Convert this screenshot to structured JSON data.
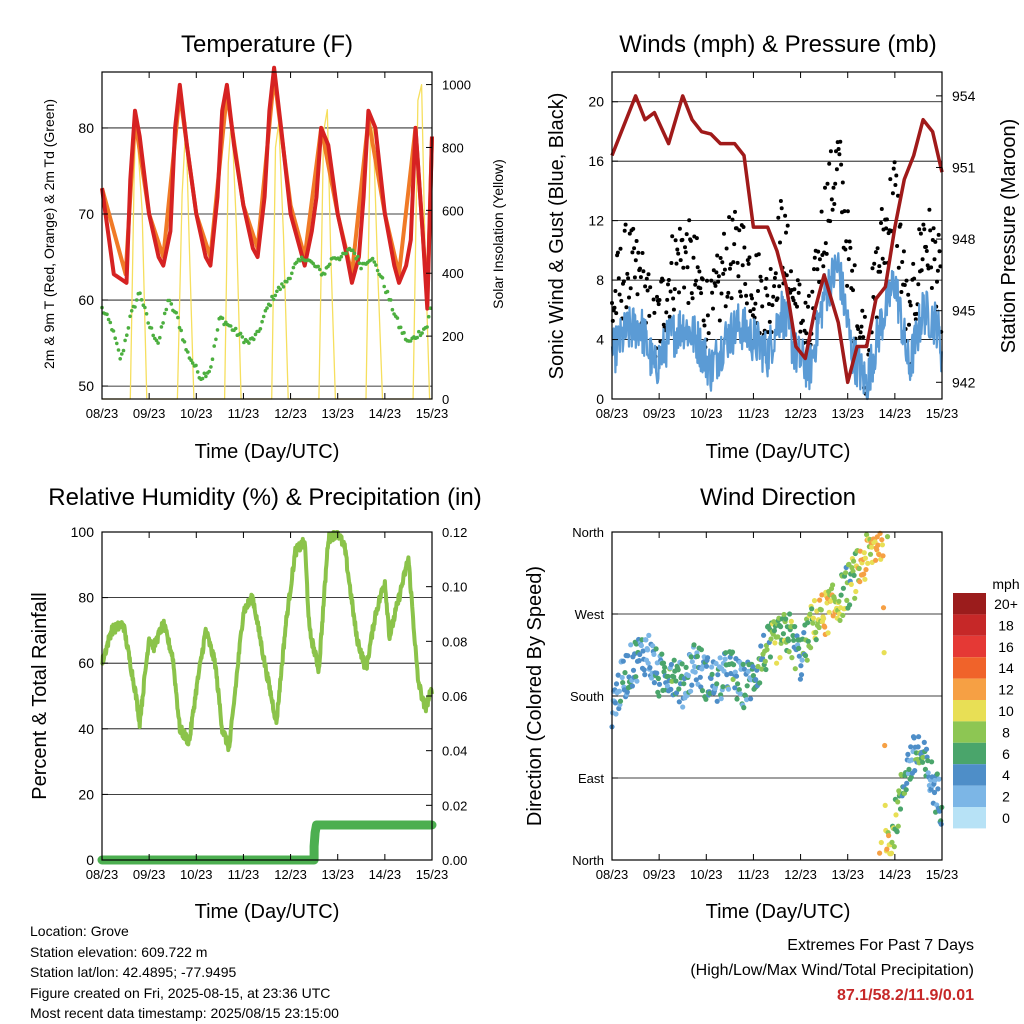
{
  "panels": {
    "temperature": {
      "title": "Temperature (F)",
      "ylabel_left": "2m & 9m T (Red, Orange) & 2m Td (Green)",
      "ylabel_right": "Solar Insolation (Yellow)",
      "xlabel": "Time (Day/UTC)"
    },
    "winds": {
      "title": "Winds (mph) & Pressure (mb)",
      "ylabel_left": "Sonic Wind & Gust (Blue, Black)",
      "ylabel_right": "Station Pressure (Maroon)",
      "xlabel": "Time (Day/UTC)"
    },
    "humidity": {
      "title": "Relative Humidity (%) & Precipitation (in)",
      "ylabel_left": "Percent & Total Rainfall",
      "xlabel": "Time (Day/UTC)"
    },
    "direction": {
      "title": "Wind Direction",
      "ylabel_left": "Direction (Colored By Speed)",
      "xlabel": "Time (Day/UTC)",
      "legend_title": "mph"
    }
  },
  "info": {
    "location": "Location: Grove",
    "elevation": "Station elevation: 609.722 m",
    "latlon": "Station lat/lon: 42.4895; -77.9495",
    "created": "Figure created on Fri, 2025-08-15, at 23:36 UTC",
    "recent": "Most recent data timestamp: 2025/08/15 23:15:00"
  },
  "extremes": {
    "heading": "Extremes For Past 7 Days",
    "subheading": "(High/Low/Max Wind/Total Precipitation)",
    "values": "87.1/58.2/11.9/0.01"
  },
  "chart_data": [
    {
      "type": "line",
      "title": "Temperature (F)",
      "xlabel": "Time (Day/UTC)",
      "ylabel": "2m & 9m T (Red, Orange) & 2m Td (Green)",
      "y2label": "Solar Insolation (Yellow)",
      "x_ticks": [
        "08/23",
        "09/23",
        "10/23",
        "11/23",
        "12/23",
        "13/23",
        "14/23",
        "15/23"
      ],
      "xlim": [
        0,
        7
      ],
      "ylim": [
        48.5,
        86.5
      ],
      "y_ticks": [
        50,
        60,
        70,
        80
      ],
      "y2lim": [
        0,
        1040
      ],
      "y2_ticks": [
        0,
        200,
        400,
        600,
        800,
        1000
      ],
      "grid": true,
      "colors": {
        "t2m": "#d62222",
        "t9m": "#f07a26",
        "td": "#4caf3f",
        "solar": "#f6df5e"
      },
      "series": [
        {
          "name": "2m T",
          "axis": "left",
          "x": [
            0,
            0.25,
            0.52,
            0.6,
            0.7,
            0.8,
            1.0,
            1.2,
            1.3,
            1.45,
            1.55,
            1.65,
            1.8,
            2.0,
            2.2,
            2.3,
            2.45,
            2.55,
            2.65,
            2.8,
            3.0,
            3.2,
            3.3,
            3.45,
            3.55,
            3.65,
            3.8,
            4.0,
            4.2,
            4.3,
            4.45,
            4.55,
            4.65,
            4.8,
            5.0,
            5.2,
            5.3,
            5.45,
            5.55,
            5.65,
            5.8,
            6.0,
            6.2,
            6.3,
            6.45,
            6.55,
            6.65,
            6.8,
            6.9,
            7.0
          ],
          "y": [
            73,
            63,
            62,
            74,
            82,
            79,
            70,
            65,
            64,
            68,
            80,
            85,
            78,
            70,
            65,
            64,
            72,
            82,
            85,
            78,
            71,
            66,
            65,
            72,
            82,
            87,
            80,
            70,
            66,
            64,
            68,
            72,
            80,
            78,
            70,
            65,
            62,
            65,
            72,
            82,
            80,
            70,
            64,
            62,
            64,
            67,
            80,
            68,
            59,
            79
          ]
        },
        {
          "name": "9m T",
          "axis": "left",
          "x": [
            0,
            0.5,
            0.7,
            1.0,
            1.3,
            1.65,
            2.0,
            2.3,
            2.65,
            3.0,
            3.3,
            3.65,
            4.0,
            4.3,
            4.65,
            5.0,
            5.3,
            5.65,
            6.0,
            6.3,
            6.65,
            6.9,
            7.0
          ],
          "y": [
            73,
            63,
            81,
            70,
            65,
            84,
            70,
            65,
            84,
            71,
            66,
            86,
            71,
            65,
            80,
            70,
            63,
            81,
            70,
            63,
            80,
            60,
            79
          ]
        },
        {
          "name": "2m Td",
          "axis": "left",
          "x": [
            0,
            0.2,
            0.4,
            0.6,
            0.8,
            1.0,
            1.2,
            1.4,
            1.6,
            1.8,
            2.0,
            2.1,
            2.3,
            2.5,
            2.7,
            2.9,
            3.1,
            3.3,
            3.5,
            3.7,
            3.9,
            4.1,
            4.3,
            4.5,
            4.7,
            4.9,
            5.1,
            5.3,
            5.5,
            5.7,
            5.9,
            6.1,
            6.3,
            6.5,
            6.7,
            6.9,
            7.0
          ],
          "y": [
            59,
            57,
            53,
            58,
            61,
            57,
            55,
            60,
            58,
            54,
            52,
            51,
            52,
            58,
            57,
            56,
            55,
            56,
            59,
            61,
            62,
            64,
            65,
            64,
            63,
            65,
            65,
            66,
            64,
            65,
            63,
            60,
            57,
            55,
            56,
            57,
            60
          ]
        },
        {
          "name": "Solar Insolation",
          "axis": "right",
          "x": [
            0,
            0.6,
            0.68,
            0.72,
            0.85,
            0.95,
            1.6,
            1.7,
            1.78,
            1.85,
            1.95,
            2.6,
            2.68,
            2.75,
            2.85,
            2.95,
            3.6,
            3.68,
            3.75,
            3.85,
            3.95,
            4.6,
            4.7,
            4.78,
            4.85,
            4.95,
            5.6,
            5.7,
            5.75,
            5.85,
            5.95,
            6.6,
            6.7,
            6.78,
            6.85,
            6.95,
            7.0
          ],
          "y": [
            0,
            0,
            700,
            900,
            600,
            0,
            0,
            650,
            880,
            500,
            0,
            0,
            750,
            900,
            550,
            0,
            0,
            800,
            880,
            520,
            0,
            0,
            850,
            920,
            480,
            0,
            0,
            900,
            870,
            400,
            0,
            0,
            950,
            1000,
            500,
            0,
            0
          ]
        }
      ]
    },
    {
      "type": "scatter",
      "title": "Winds (mph) & Pressure (mb)",
      "xlabel": "Time (Day/UTC)",
      "ylabel": "Sonic Wind & Gust (Blue, Black)",
      "y2label": "Station Pressure (Maroon)",
      "x_ticks": [
        "08/23",
        "09/23",
        "10/23",
        "11/23",
        "12/23",
        "13/23",
        "14/23",
        "15/23"
      ],
      "xlim": [
        0,
        7
      ],
      "ylim": [
        0,
        22
      ],
      "y_ticks": [
        0,
        4,
        8,
        12,
        16,
        20
      ],
      "y2lim": [
        941.3,
        955
      ],
      "y2_ticks": [
        942,
        945,
        948,
        951,
        954
      ],
      "grid": true,
      "colors": {
        "wind": "#5b9bd5",
        "gust": "#000000",
        "pressure": "#a01a1a"
      },
      "series": [
        {
          "name": "Sonic Wind",
          "axis": "left",
          "x": [
            0,
            0.3,
            0.6,
            0.9,
            1.2,
            1.5,
            1.8,
            2.1,
            2.4,
            2.7,
            3.0,
            3.3,
            3.6,
            3.9,
            4.2,
            4.5,
            4.8,
            5.1,
            5.4,
            5.7,
            6.0,
            6.3,
            6.6,
            6.9,
            7.0
          ],
          "y": [
            3,
            4.5,
            5,
            2,
            4,
            5,
            4,
            2,
            4,
            5,
            4,
            3,
            6,
            3,
            2,
            7,
            9,
            3,
            1,
            5,
            8,
            2,
            6,
            5,
            3
          ]
        },
        {
          "name": "Gust",
          "axis": "left",
          "x": [
            0,
            0.3,
            0.6,
            0.9,
            1.2,
            1.5,
            1.8,
            2.1,
            2.4,
            2.7,
            3.0,
            3.3,
            3.6,
            3.9,
            4.2,
            4.5,
            4.8,
            5.1,
            5.4,
            5.7,
            6.0,
            6.3,
            6.6,
            6.9,
            7.0
          ],
          "y": [
            6,
            9,
            8,
            4,
            8,
            10,
            8,
            5,
            9,
            10,
            8,
            6,
            11,
            6,
            4,
            12,
            16,
            7,
            3,
            10,
            14,
            4,
            11,
            9,
            6
          ]
        },
        {
          "name": "Station Pressure",
          "axis": "right",
          "x": [
            0,
            0.2,
            0.5,
            0.7,
            0.9,
            1.2,
            1.5,
            1.7,
            1.9,
            2.1,
            2.3,
            2.6,
            2.8,
            3.0,
            3.3,
            3.5,
            3.7,
            3.9,
            4.1,
            4.3,
            4.5,
            4.8,
            5.0,
            5.2,
            5.4,
            5.6,
            5.8,
            6.0,
            6.2,
            6.4,
            6.6,
            6.8,
            7.0
          ],
          "y": [
            951.5,
            952.5,
            954,
            953,
            953.3,
            952,
            954,
            953,
            952.5,
            952.4,
            952,
            952,
            951.5,
            948.5,
            948.5,
            947.5,
            946,
            943.5,
            943,
            945,
            946.5,
            944.5,
            942,
            943.5,
            943.5,
            945.5,
            946,
            948.5,
            950.5,
            951.5,
            953,
            952.5,
            950.8
          ]
        }
      ]
    },
    {
      "type": "line",
      "title": "Relative Humidity (%) & Precipitation (in)",
      "xlabel": "Time (Day/UTC)",
      "ylabel": "Percent & Total Rainfall",
      "x_ticks": [
        "08/23",
        "09/23",
        "10/23",
        "11/23",
        "12/23",
        "13/23",
        "14/23",
        "15/23"
      ],
      "xlim": [
        0,
        7
      ],
      "ylim": [
        0,
        100
      ],
      "y_ticks": [
        0,
        20,
        40,
        60,
        80,
        100
      ],
      "y2lim": [
        0,
        0.12
      ],
      "y2_ticks": [
        "0.00",
        "0.02",
        "0.04",
        "0.06",
        "0.08",
        "0.10",
        "0.12"
      ],
      "grid": true,
      "colors": {
        "rh": "#8bc34a",
        "precip": "#4caf50"
      },
      "series": [
        {
          "name": "Relative Humidity",
          "axis": "left",
          "x": [
            0,
            0.2,
            0.45,
            0.7,
            0.8,
            1.0,
            1.1,
            1.3,
            1.5,
            1.65,
            1.85,
            2.0,
            2.2,
            2.4,
            2.55,
            2.7,
            2.85,
            3.0,
            3.2,
            3.45,
            3.7,
            3.9,
            4.1,
            4.3,
            4.4,
            4.6,
            4.8,
            5.0,
            5.15,
            5.4,
            5.6,
            5.8,
            6.0,
            6.1,
            6.3,
            6.5,
            6.7,
            6.85,
            7.0
          ],
          "y": [
            60,
            70,
            72,
            52,
            42,
            68,
            65,
            72,
            62,
            40,
            36,
            52,
            70,
            60,
            40,
            34,
            55,
            76,
            80,
            60,
            42,
            72,
            94,
            97,
            70,
            58,
            98,
            100,
            95,
            68,
            58,
            75,
            85,
            68,
            80,
            92,
            55,
            46,
            52
          ]
        },
        {
          "name": "Precipitation",
          "axis": "right",
          "x": [
            0,
            4.5,
            4.5,
            4.52,
            4.55,
            7.0
          ],
          "y": [
            0,
            0,
            0.005,
            0.01,
            0.0128,
            0.0128
          ]
        }
      ]
    },
    {
      "type": "scatter",
      "title": "Wind Direction",
      "xlabel": "Time (Day/UTC)",
      "ylabel": "Direction (Colored By Speed)",
      "x_ticks": [
        "08/23",
        "09/23",
        "10/23",
        "11/23",
        "12/23",
        "13/23",
        "14/23",
        "15/23"
      ],
      "xlim": [
        0,
        7
      ],
      "y_categories": [
        "North",
        "East",
        "South",
        "West",
        "North"
      ],
      "ylim": [
        0,
        360
      ],
      "grid": true,
      "legend": {
        "title": "mph",
        "placement": "right",
        "labels": [
          "20+",
          "18",
          "16",
          "14",
          "12",
          "10",
          "8",
          "6",
          "4",
          "2",
          "0"
        ],
        "colors": [
          "#9b1c1c",
          "#c62828",
          "#e53935",
          "#f0632a",
          "#f6a044",
          "#e8df55",
          "#8dc653",
          "#4aa56b",
          "#4e8ec8",
          "#7cb6e6",
          "#b7e2f6"
        ]
      },
      "x": [
        0,
        0.25,
        0.5,
        0.75,
        1.0,
        1.25,
        1.5,
        1.75,
        2.0,
        2.25,
        2.5,
        2.75,
        3.0,
        3.25,
        3.5,
        3.75,
        4.0,
        4.25,
        4.5,
        4.75,
        5.0,
        5.25,
        5.5,
        5.75,
        5.8,
        5.9,
        6.0,
        6.25,
        6.5,
        6.75,
        7.0
      ],
      "direction_deg": [
        170,
        200,
        220,
        230,
        200,
        210,
        190,
        220,
        200,
        195,
        210,
        190,
        200,
        230,
        240,
        250,
        220,
        260,
        270,
        280,
        300,
        320,
        340,
        358,
        10,
        25,
        40,
        100,
        120,
        90,
        60
      ],
      "speed_mph": [
        3,
        4,
        4,
        3,
        4,
        5,
        4,
        3,
        4,
        4,
        5,
        4,
        4,
        6,
        8,
        8,
        4,
        8,
        10,
        10,
        6,
        10,
        10,
        12,
        12,
        10,
        8,
        4,
        6,
        4,
        3
      ]
    }
  ]
}
